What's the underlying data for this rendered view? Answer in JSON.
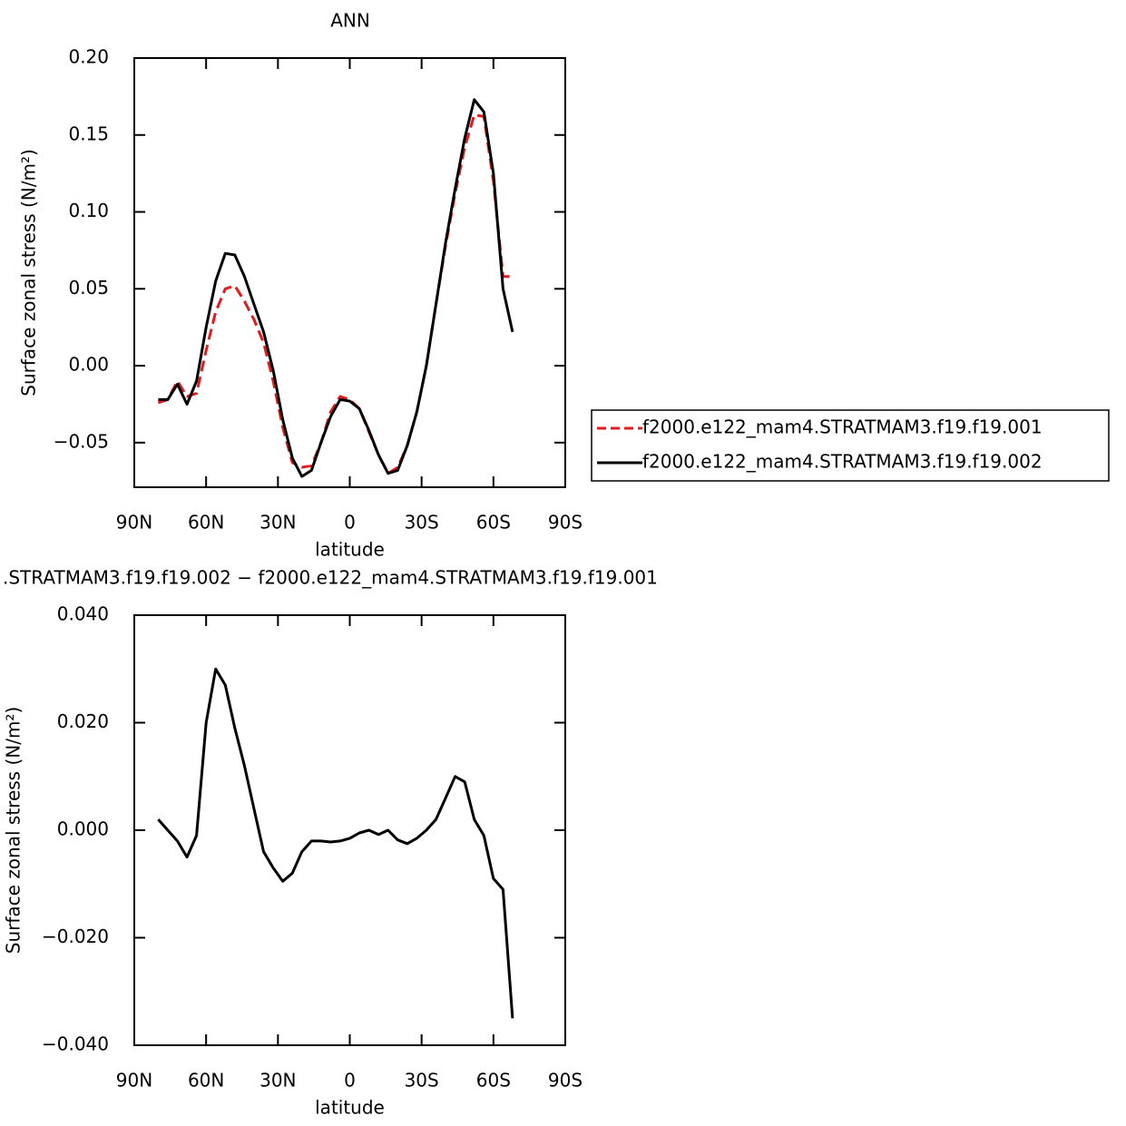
{
  "chart_data": [
    {
      "type": "line",
      "title": "ANN",
      "xlabel": "latitude",
      "ylabel": "Surface zonal stress (N/m²)",
      "x": [
        80,
        76,
        72,
        68,
        64,
        60,
        56,
        52,
        48,
        44,
        40,
        36,
        32,
        28,
        24,
        20,
        16,
        12,
        8,
        4,
        0,
        -4,
        -8,
        -12,
        -16,
        -20,
        -24,
        -28,
        -32,
        -36,
        -40,
        -44,
        -48,
        -52,
        -56,
        -60,
        -64,
        -68
      ],
      "xlim": [
        90,
        -90
      ],
      "xticks": [
        {
          "value": 90,
          "label": "90N"
        },
        {
          "value": 60,
          "label": "60N"
        },
        {
          "value": 30,
          "label": "30N"
        },
        0,
        {
          "value": -30,
          "label": "30S"
        },
        {
          "value": -60,
          "label": "60S"
        },
        {
          "value": -90,
          "label": "90S"
        }
      ],
      "ylim": [
        -0.079,
        0.2
      ],
      "yticks": [
        {
          "value": 0.2,
          "label": "0.20"
        },
        {
          "value": 0.15,
          "label": "0.15"
        },
        {
          "value": 0.1,
          "label": "0.10"
        },
        {
          "value": 0.05,
          "label": "0.05"
        },
        {
          "value": 0,
          "label": "0.00"
        },
        {
          "value": -0.05,
          "label": "−0.05"
        }
      ],
      "series": [
        {
          "name": "f2000.e122_mam4.STRATMAM3.f19.f19.001",
          "color": "#e41a1c",
          "dashed": true,
          "values": [
            -0.024,
            -0.022,
            -0.01,
            -0.02,
            -0.018,
            0.01,
            0.035,
            0.05,
            0.052,
            0.042,
            0.03,
            0.015,
            -0.01,
            -0.04,
            -0.063,
            -0.066,
            -0.065,
            -0.05,
            -0.03,
            -0.02,
            -0.022,
            -0.028,
            -0.043,
            -0.058,
            -0.07,
            -0.066,
            -0.052,
            -0.03,
            0.0,
            0.04,
            0.078,
            0.112,
            0.142,
            0.163,
            0.162,
            0.12,
            0.058,
            0.058
          ]
        },
        {
          "name": "f2000.e122_mam4.STRATMAM3.f19.f19.002",
          "color": "#000000",
          "dashed": false,
          "values": [
            -0.022,
            -0.022,
            -0.012,
            -0.025,
            -0.01,
            0.025,
            0.055,
            0.073,
            0.072,
            0.058,
            0.04,
            0.022,
            -0.003,
            -0.035,
            -0.06,
            -0.072,
            -0.068,
            -0.05,
            -0.033,
            -0.022,
            -0.023,
            -0.028,
            -0.042,
            -0.058,
            -0.07,
            -0.068,
            -0.052,
            -0.03,
            0.0,
            0.04,
            0.08,
            0.115,
            0.148,
            0.173,
            0.165,
            0.125,
            0.05,
            0.022
          ]
        }
      ]
    },
    {
      "type": "line",
      "title": ".STRATMAM3.f19.f19.002 − f2000.e122_mam4.STRATMAM3.f19.f19.001",
      "xlabel": "latitude",
      "ylabel": "Surface zonal stress (N/m²)",
      "x": [
        80,
        76,
        72,
        68,
        64,
        60,
        56,
        52,
        48,
        44,
        40,
        36,
        32,
        28,
        24,
        20,
        16,
        12,
        8,
        4,
        0,
        -4,
        -8,
        -12,
        -16,
        -20,
        -24,
        -28,
        -32,
        -36,
        -40,
        -44,
        -48,
        -52,
        -56,
        -60,
        -64,
        -68
      ],
      "xlim": [
        90,
        -90
      ],
      "xticks": [
        {
          "value": 90,
          "label": "90N"
        },
        {
          "value": 60,
          "label": "60N"
        },
        {
          "value": 30,
          "label": "30N"
        },
        0,
        {
          "value": -30,
          "label": "30S"
        },
        {
          "value": -60,
          "label": "60S"
        },
        {
          "value": -90,
          "label": "90S"
        }
      ],
      "ylim": [
        -0.04,
        0.04
      ],
      "yticks": [
        {
          "value": 0.04,
          "label": "0.040"
        },
        {
          "value": 0.02,
          "label": "0.020"
        },
        {
          "value": 0,
          "label": "0.000"
        },
        {
          "value": -0.02,
          "label": "−0.020"
        },
        {
          "value": -0.04,
          "label": "−0.040"
        }
      ],
      "series": [
        {
          "color": "#000000",
          "dashed": false,
          "values": [
            0.002,
            0.0,
            -0.002,
            -0.005,
            -0.001,
            0.02,
            0.03,
            0.027,
            0.019,
            0.012,
            0.004,
            -0.004,
            -0.007,
            -0.0095,
            -0.008,
            -0.004,
            -0.002,
            -0.002,
            -0.0022,
            -0.002,
            -0.0015,
            -0.0005,
            0.0,
            -0.0008,
            0.0,
            -0.0018,
            -0.0025,
            -0.0015,
            0.0,
            0.002,
            0.006,
            0.01,
            0.009,
            0.002,
            -0.001,
            -0.009,
            -0.011,
            -0.035
          ]
        }
      ]
    }
  ]
}
